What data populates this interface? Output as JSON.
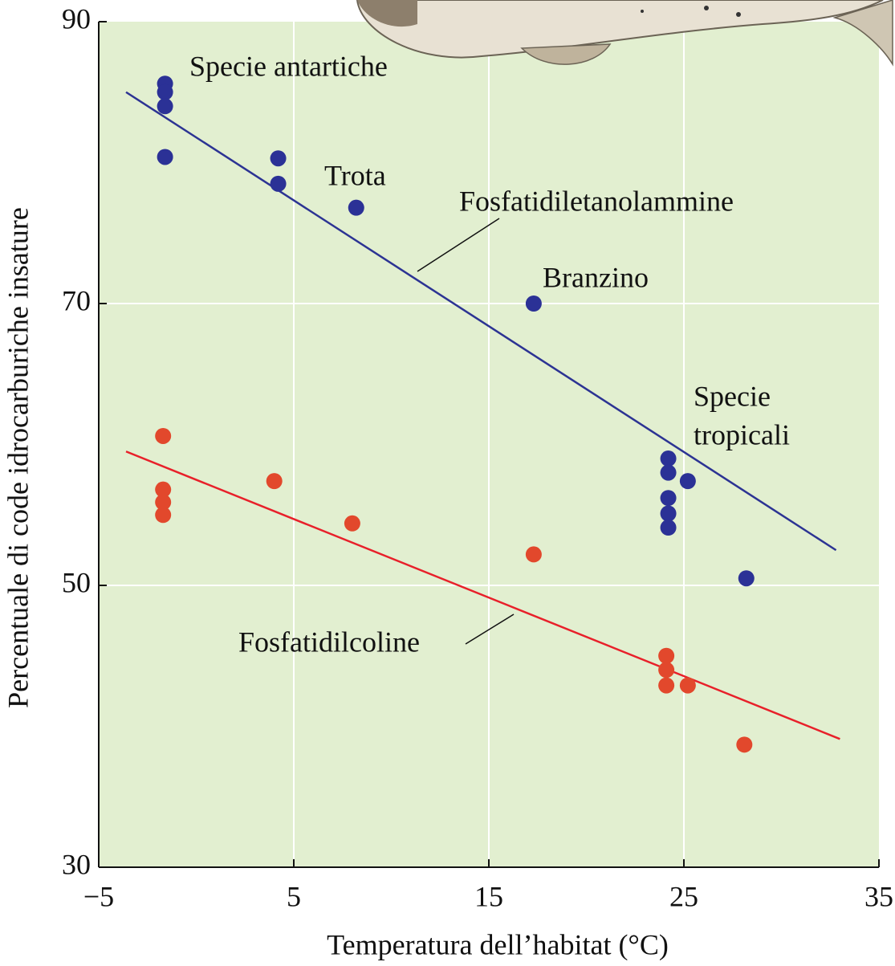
{
  "chart_data": {
    "type": "scatter",
    "x_label": "Temperatura dell’habitat (°C)",
    "y_label": "Percentuale di code idrocarburiche insature",
    "xlim": [
      -5,
      35
    ],
    "ylim": [
      30,
      90
    ],
    "xticks": [
      {
        "value": -5,
        "label": "−5"
      },
      5,
      15,
      25,
      35
    ],
    "yticks": [
      30,
      50,
      70,
      90
    ],
    "grid": true,
    "background": "#e2efd0",
    "annotations": [
      "Specie antartiche",
      "Trota",
      "Branzino",
      "Specie",
      "tropicali"
    ],
    "series": [
      {
        "name": "Fosfatidiletanolammine",
        "color": "#2b3196",
        "line_color": "#2c3393",
        "x": [
          -1.6,
          -1.6,
          -1.6,
          -1.6,
          4.2,
          4.2,
          8.2,
          17.3,
          24.2,
          24.2,
          24.2,
          24.2,
          24.2,
          25.2,
          28.2
        ],
        "y": [
          85.6,
          85.0,
          84.0,
          80.4,
          80.3,
          78.5,
          76.8,
          70.0,
          59.0,
          58.0,
          56.2,
          55.1,
          54.1,
          57.4,
          50.5
        ],
        "trend": {
          "x": [
            -3.6,
            32.8
          ],
          "y": [
            85.0,
            52.5
          ]
        }
      },
      {
        "name": "Fosfatidilcoline",
        "color": "#e2482c",
        "line_color": "#e8202a",
        "x": [
          -1.7,
          -1.7,
          -1.7,
          -1.7,
          4.0,
          8.0,
          17.3,
          24.1,
          24.1,
          24.1,
          25.2,
          28.1
        ],
        "y": [
          60.6,
          56.8,
          55.9,
          55.0,
          57.4,
          54.4,
          52.2,
          45.0,
          44.0,
          42.9,
          42.9,
          38.7
        ],
        "trend": {
          "x": [
            -3.6,
            33.0
          ],
          "y": [
            59.5,
            39.1
          ]
        }
      }
    ]
  }
}
